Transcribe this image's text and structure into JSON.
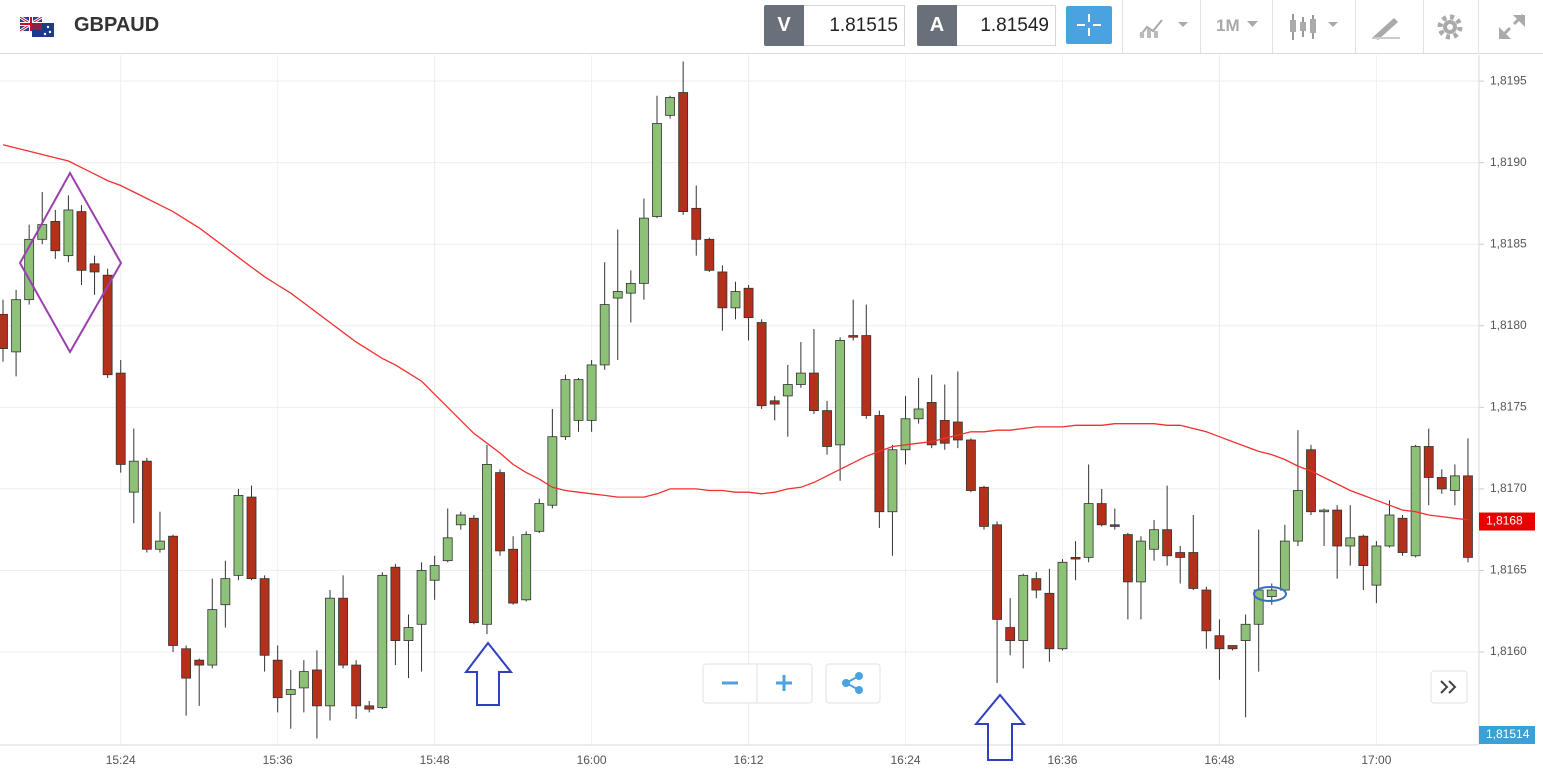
{
  "chart_data": {
    "type": "candlestick",
    "title": "GBPAUD",
    "toolbar": {
      "sell_label": "V",
      "sell_price": "1.81515",
      "buy_label": "A",
      "buy_price": "1.81549",
      "timeframe": "1M"
    },
    "categories": [
      null,
      null,
      null,
      null,
      null,
      null,
      null,
      null,
      null,
      "15:24",
      null,
      null,
      null,
      null,
      null,
      null,
      null,
      null,
      null,
      null,
      null,
      "15:36",
      null,
      null,
      null,
      null,
      null,
      null,
      null,
      null,
      null,
      null,
      null,
      "15:48",
      null,
      null,
      null,
      null,
      null,
      null,
      null,
      null,
      null,
      null,
      null,
      "16:00",
      null,
      null,
      null,
      null,
      null,
      null,
      null,
      null,
      null,
      null,
      null,
      "16:12",
      null,
      null,
      null,
      null,
      null,
      null,
      null,
      null,
      null,
      null,
      null,
      "16:24",
      null,
      null,
      null,
      null,
      null,
      null,
      null,
      null,
      null,
      null,
      null,
      "16:36",
      null,
      null,
      null,
      null,
      null,
      null,
      null,
      null,
      null,
      null,
      null,
      "16:48",
      null,
      null,
      null,
      null,
      null,
      null,
      null,
      null,
      null,
      null,
      null,
      "17:00",
      null,
      null,
      null,
      null,
      null,
      null,
      null
    ],
    "open": [
      1.81807,
      1.81784,
      1.81816,
      1.81853,
      1.81864,
      1.81843,
      1.8187,
      1.81838,
      1.81831,
      1.81771,
      1.81698,
      1.81717,
      1.81663,
      1.81671,
      1.81602,
      1.81595,
      1.81592,
      1.81629,
      1.81647,
      1.81695,
      1.81645,
      1.81595,
      1.81574,
      1.81578,
      1.81589,
      1.81567,
      1.81633,
      1.81592,
      1.81567,
      1.81566,
      1.81652,
      1.81607,
      1.81617,
      1.81644,
      1.81656,
      1.81678,
      1.81682,
      1.81617,
      1.8171,
      1.81663,
      1.81632,
      1.81674,
      1.8169,
      1.81732,
      1.81742,
      1.81742,
      1.81776,
      1.81817,
      1.8182,
      1.81826,
      1.81867,
      1.81929,
      1.81943,
      1.81872,
      1.81853,
      1.81833,
      1.81811,
      1.81823,
      1.81802,
      1.81754,
      1.81757,
      1.81764,
      1.81771,
      1.81748,
      1.81727,
      1.81794,
      1.81794,
      1.81745,
      1.81686,
      1.81724,
      1.81743,
      1.81753,
      1.81742,
      1.81741,
      1.8173,
      1.81701,
      1.81678,
      1.81615,
      1.81607,
      1.81645,
      1.81636,
      1.81602,
      1.81658,
      1.81658,
      1.81691,
      1.81678,
      1.81672,
      1.81643,
      1.81663,
      1.81675,
      1.81661,
      1.81661,
      1.81638,
      1.8161,
      1.81604,
      1.81607,
      1.81617,
      1.81634,
      1.81638,
      1.81668,
      1.81724,
      1.81686,
      1.81687,
      1.81665,
      1.81671,
      1.81641,
      1.81665,
      1.81682,
      1.81659,
      1.81726,
      1.81707,
      1.81699,
      1.81708
    ],
    "high": [
      1.81816,
      1.81822,
      1.81862,
      1.81882,
      1.81871,
      1.8188,
      1.81874,
      1.81843,
      1.81835,
      1.81779,
      1.81737,
      1.81719,
      1.81686,
      1.81672,
      1.81604,
      1.81596,
      1.81645,
      1.81656,
      1.817,
      1.81702,
      1.81647,
      1.81604,
      1.81589,
      1.81595,
      1.81601,
      1.81638,
      1.81647,
      1.81595,
      1.8157,
      1.81649,
      1.81654,
      1.81623,
      1.81655,
      1.81659,
      1.81688,
      1.81686,
      1.81684,
      1.81727,
      1.81712,
      1.81671,
      1.81674,
      1.81694,
      1.81749,
      1.8177,
      1.81768,
      1.81779,
      1.81839,
      1.81859,
      1.81834,
      1.81878,
      1.81941,
      1.81941,
      1.81962,
      1.81886,
      1.81854,
      1.81837,
      1.81827,
      1.81825,
      1.81804,
      1.81757,
      1.81776,
      1.8179,
      1.81798,
      1.81754,
      1.81793,
      1.81816,
      1.81813,
      1.81748,
      1.81727,
      1.81757,
      1.81768,
      1.8177,
      1.81764,
      1.81772,
      1.81731,
      1.81702,
      1.8168,
      1.81633,
      1.81648,
      1.81649,
      1.81651,
      1.81657,
      1.81668,
      1.81715,
      1.817,
      1.81688,
      1.81673,
      1.81671,
      1.81681,
      1.81702,
      1.81665,
      1.81684,
      1.8164,
      1.8162,
      1.81604,
      1.81623,
      1.81675,
      1.81642,
      1.81678,
      1.81736,
      1.81727,
      1.81688,
      1.8169,
      1.8169,
      1.81672,
      1.81668,
      1.81693,
      1.81684,
      1.81727,
      1.81737,
      1.81712,
      1.81715,
      1.81731
    ],
    "low": [
      1.81778,
      1.81769,
      1.81813,
      1.8185,
      1.81841,
      1.81839,
      1.81825,
      1.81819,
      1.81768,
      1.8171,
      1.81679,
      1.81661,
      1.81661,
      1.816,
      1.81561,
      1.81567,
      1.8159,
      1.81615,
      1.81644,
      1.81644,
      1.81588,
      1.81563,
      1.81553,
      1.81563,
      1.81547,
      1.81558,
      1.8159,
      1.81559,
      1.81563,
      1.81565,
      1.81592,
      1.81584,
      1.81588,
      1.81632,
      1.81655,
      1.81675,
      1.81617,
      1.81611,
      1.81659,
      1.81629,
      1.81631,
      1.81673,
      1.81688,
      1.8173,
      1.81735,
      1.81735,
      1.81773,
      1.81779,
      1.81802,
      1.81816,
      1.81866,
      1.81927,
      1.81868,
      1.81843,
      1.81833,
      1.81797,
      1.81804,
      1.81791,
      1.81749,
      1.81742,
      1.81732,
      1.81762,
      1.81746,
      1.81721,
      1.81705,
      1.81791,
      1.81743,
      1.81676,
      1.81659,
      1.81715,
      1.8174,
      1.81725,
      1.81724,
      1.81725,
      1.81698,
      1.81675,
      1.81581,
      1.81598,
      1.8159,
      1.81633,
      1.81594,
      1.81601,
      1.81644,
      1.81655,
      1.81677,
      1.81675,
      1.8162,
      1.8162,
      1.81656,
      1.81653,
      1.81642,
      1.81638,
      1.81602,
      1.81583,
      1.81601,
      1.8156,
      1.81588,
      1.81629,
      1.81637,
      1.81665,
      1.81684,
      1.81665,
      1.81645,
      1.81653,
      1.81638,
      1.8163,
      1.81664,
      1.81659,
      1.81658,
      1.8169,
      1.81697,
      1.8169,
      1.81655
    ],
    "close": [
      1.81786,
      1.81816,
      1.81853,
      1.81862,
      1.81846,
      1.81871,
      1.81834,
      1.81833,
      1.8177,
      1.81715,
      1.81717,
      1.81663,
      1.81668,
      1.81604,
      1.81584,
      1.81592,
      1.81626,
      1.81645,
      1.81696,
      1.81645,
      1.81598,
      1.81572,
      1.81577,
      1.81588,
      1.81567,
      1.81633,
      1.81592,
      1.81567,
      1.81565,
      1.81647,
      1.81607,
      1.81615,
      1.8165,
      1.81653,
      1.8167,
      1.81684,
      1.81618,
      1.81715,
      1.81662,
      1.8163,
      1.81672,
      1.81691,
      1.81732,
      1.81767,
      1.81767,
      1.81776,
      1.81813,
      1.81821,
      1.81826,
      1.81866,
      1.81924,
      1.8194,
      1.8187,
      1.81853,
      1.81834,
      1.81811,
      1.81821,
      1.81805,
      1.81751,
      1.81752,
      1.81764,
      1.81771,
      1.81748,
      1.81726,
      1.81791,
      1.81793,
      1.81745,
      1.81686,
      1.81724,
      1.81743,
      1.81749,
      1.81727,
      1.81728,
      1.8173,
      1.81699,
      1.81677,
      1.8162,
      1.81607,
      1.81647,
      1.81638,
      1.81602,
      1.81655,
      1.81657,
      1.81691,
      1.81678,
      1.81677,
      1.81643,
      1.81668,
      1.81675,
      1.81659,
      1.81658,
      1.81639,
      1.81613,
      1.81602,
      1.81602,
      1.81617,
      1.81638,
      1.81638,
      1.81668,
      1.81699,
      1.81686,
      1.81687,
      1.81665,
      1.8167,
      1.81653,
      1.81665,
      1.81684,
      1.81661,
      1.81726,
      1.81707,
      1.817,
      1.81708,
      1.81658
    ],
    "up_color": "#8dc177",
    "down_color": "#b3301a",
    "overlay": {
      "type": "line",
      "color": "#f23030",
      "values": [
        1.81911,
        1.81909,
        1.81907,
        1.81905,
        1.81903,
        1.81901,
        1.81897,
        1.81893,
        1.81889,
        1.81886,
        1.81882,
        1.81878,
        1.81874,
        1.8187,
        1.81865,
        1.8186,
        1.81854,
        1.81848,
        1.81842,
        1.81836,
        1.8183,
        1.81825,
        1.8182,
        1.81814,
        1.81808,
        1.81802,
        1.81796,
        1.8179,
        1.81785,
        1.8178,
        1.81776,
        1.81771,
        1.81766,
        1.81758,
        1.8175,
        1.81742,
        1.81734,
        1.81728,
        1.81722,
        1.81715,
        1.8171,
        1.81706,
        1.81701,
        1.81699,
        1.81698,
        1.81697,
        1.81696,
        1.81695,
        1.81695,
        1.81695,
        1.81697,
        1.817,
        1.817,
        1.817,
        1.81699,
        1.81699,
        1.81698,
        1.81698,
        1.81697,
        1.81698,
        1.817,
        1.81701,
        1.81704,
        1.81708,
        1.81712,
        1.81716,
        1.8172,
        1.81723,
        1.81726,
        1.81727,
        1.81728,
        1.81729,
        1.81731,
        1.81733,
        1.81735,
        1.81735,
        1.81736,
        1.81736,
        1.81737,
        1.81738,
        1.81738,
        1.81738,
        1.81739,
        1.81739,
        1.81739,
        1.8174,
        1.8174,
        1.8174,
        1.8174,
        1.81739,
        1.81739,
        1.81737,
        1.81735,
        1.81732,
        1.81729,
        1.81726,
        1.81723,
        1.81721,
        1.81718,
        1.81714,
        1.81711,
        1.81707,
        1.81703,
        1.81699,
        1.81696,
        1.81693,
        1.8169,
        1.81687,
        1.81686,
        1.81684,
        1.81683,
        1.81682,
        1.81681
      ]
    },
    "ylim": [
      1.81543,
      1.81966
    ],
    "yticks": [
      {
        "value": 1.816,
        "label": "1,8160"
      },
      {
        "value": 1.8165,
        "label": "1,8165"
      },
      {
        "value": 1.817,
        "label": "1,8170"
      },
      {
        "value": 1.8175,
        "label": "1,8175"
      },
      {
        "value": 1.818,
        "label": "1,8180"
      },
      {
        "value": 1.8185,
        "label": "1,8185"
      },
      {
        "value": 1.819,
        "label": "1,8190"
      },
      {
        "value": 1.8195,
        "label": "1,8195"
      }
    ],
    "price_markers": [
      {
        "value": 1.8168,
        "label": "1,8168",
        "color": "#e60000"
      },
      {
        "value": 1.81514,
        "label": "1,81514",
        "color": "#3aa0d6"
      }
    ],
    "grid": true
  }
}
